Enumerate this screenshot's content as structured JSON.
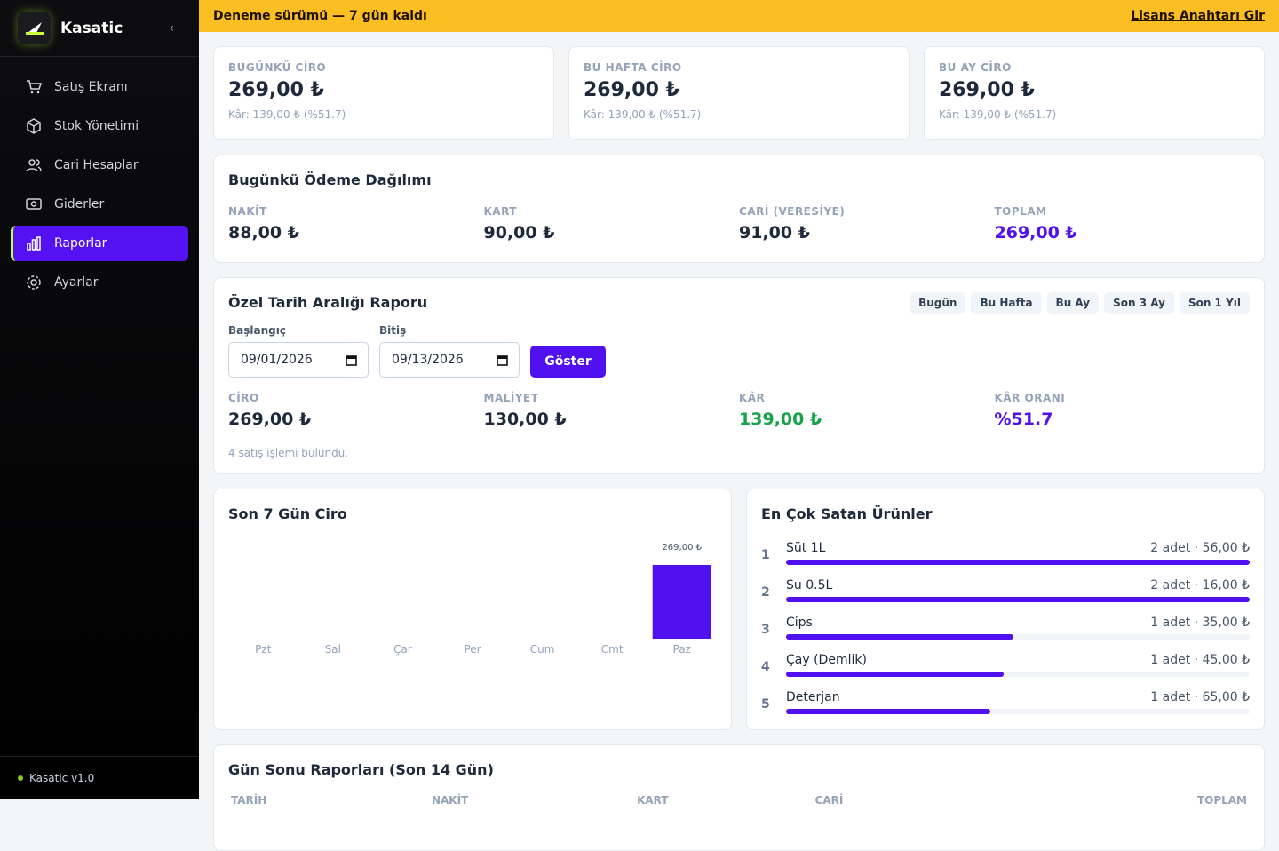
{
  "sidebar": {
    "brand": "Kasatic",
    "nav": [
      "Satış Ekranı",
      "Stok Yönetimi",
      "Cari Hesaplar",
      "Giderler",
      "Raporlar",
      "Ayarlar"
    ],
    "active_index": 4,
    "version": "Kasatic v1.0"
  },
  "banner": {
    "text": "Deneme sürümü — 7 gün kaldı",
    "link": "Lisans Anahtarı Gir"
  },
  "stat_cards": [
    {
      "label": "BUGÜNKÜ CİRO",
      "value": "269,00 ₺",
      "sub": "Kâr: 139,00 ₺ (%51.7)"
    },
    {
      "label": "BU HAFTA CİRO",
      "value": "269,00 ₺",
      "sub": "Kâr: 139,00 ₺ (%51.7)"
    },
    {
      "label": "BU AY CİRO",
      "value": "269,00 ₺",
      "sub": "Kâr: 139,00 ₺ (%51.7)"
    }
  ],
  "payment": {
    "title": "Bugünkü Ödeme Dağılımı",
    "items": [
      {
        "label": "NAKİT",
        "value": "88,00 ₺"
      },
      {
        "label": "KART",
        "value": "90,00 ₺"
      },
      {
        "label": "CARİ (VERESİYE)",
        "value": "91,00 ₺"
      },
      {
        "label": "TOPLAM",
        "value": "269,00 ₺"
      }
    ]
  },
  "range_report": {
    "title": "Özel Tarih Aralığı Raporu",
    "presets": [
      "Bugün",
      "Bu Hafta",
      "Bu Ay",
      "Son 3 Ay",
      "Son 1 Yıl"
    ],
    "start_label": "Başlangıç",
    "start_value": "09/01/2026",
    "end_label": "Bitiş",
    "end_value": "09/13/2026",
    "button": "Göster",
    "metrics": [
      {
        "label": "CİRO",
        "value": "269,00 ₺"
      },
      {
        "label": "MALİYET",
        "value": "130,00 ₺"
      },
      {
        "label": "KÂR",
        "value": "139,00 ₺"
      },
      {
        "label": "KÂR ORANI",
        "value": "%51.7"
      }
    ],
    "note": "4 satış işlemi bulundu."
  },
  "chart_data": {
    "type": "bar",
    "title": "Son 7 Gün Ciro",
    "categories": [
      "Pzt",
      "Sal",
      "Çar",
      "Per",
      "Cum",
      "Cmt",
      "Paz"
    ],
    "values": [
      0,
      0,
      0,
      0,
      0,
      0,
      269
    ],
    "value_labels": [
      null,
      null,
      null,
      null,
      null,
      null,
      "269,00 ₺"
    ],
    "color": "#5010f0"
  },
  "top_products": {
    "title": "En Çok Satan Ürünler",
    "items": [
      {
        "rank": 1,
        "name": "Süt 1L",
        "detail": "2 adet · 56,00 ₺",
        "progress": 100
      },
      {
        "rank": 2,
        "name": "Su 0.5L",
        "detail": "2 adet · 16,00 ₺",
        "progress": 100
      },
      {
        "rank": 3,
        "name": "Cips",
        "detail": "1 adet · 35,00 ₺",
        "progress": 49
      },
      {
        "rank": 4,
        "name": "Çay (Demlik)",
        "detail": "1 adet · 45,00 ₺",
        "progress": 47
      },
      {
        "rank": 5,
        "name": "Deterjan",
        "detail": "1 adet · 65,00 ₺",
        "progress": 44
      }
    ]
  },
  "day_end": {
    "title": "Gün Sonu Raporları (Son 14 Gün)",
    "headers": [
      "TARİH",
      "NAKİT",
      "KART",
      "CARİ",
      "TOPLAM"
    ]
  }
}
